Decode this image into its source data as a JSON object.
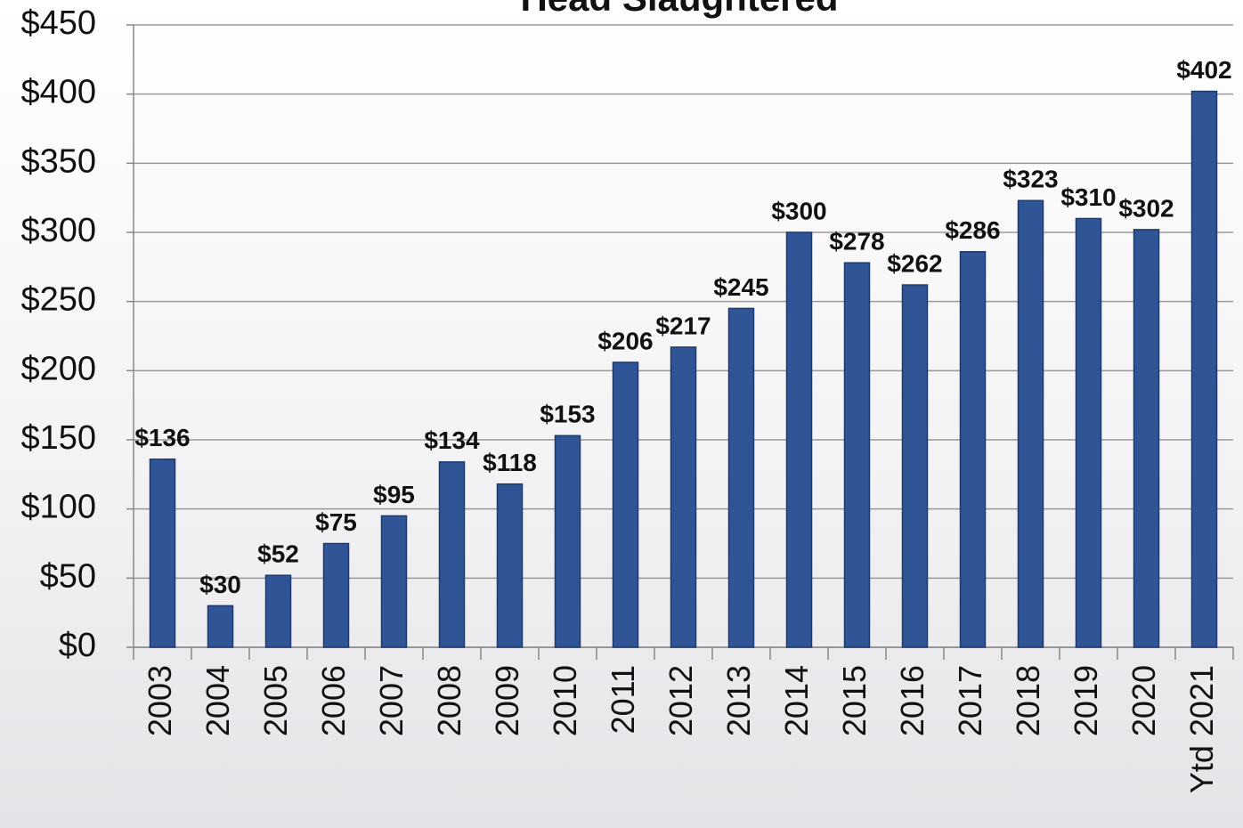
{
  "chart_data": {
    "type": "bar",
    "title": "Head Slaughtered",
    "categories": [
      "2003",
      "2004",
      "2005",
      "2006",
      "2007",
      "2008",
      "2009",
      "2010",
      "2011",
      "2012",
      "2013",
      "2014",
      "2015",
      "2016",
      "2017",
      "2018",
      "2019",
      "2020",
      "Ytd 2021"
    ],
    "values": [
      136,
      30,
      52,
      75,
      95,
      134,
      118,
      153,
      206,
      217,
      245,
      300,
      278,
      262,
      286,
      323,
      310,
      302,
      402
    ],
    "value_labels": [
      "$136",
      "$30",
      "$52",
      "$75",
      "$95",
      "$134",
      "$118",
      "$153",
      "$206",
      "$217",
      "$245",
      "$300",
      "$278",
      "$262",
      "$286",
      "$323",
      "$310",
      "$302",
      "$402"
    ],
    "color": "#2f5597",
    "ylim": [
      0,
      450
    ],
    "yticks": [
      {
        "value": 0,
        "label": "$0"
      },
      {
        "value": 50,
        "label": "$50"
      },
      {
        "value": 100,
        "label": "$100"
      },
      {
        "value": 150,
        "label": "$150"
      },
      {
        "value": 200,
        "label": "$200"
      },
      {
        "value": 250,
        "label": "$250"
      },
      {
        "value": 300,
        "label": "$300"
      },
      {
        "value": 350,
        "label": "$350"
      },
      {
        "value": 400,
        "label": "$400"
      },
      {
        "value": 450,
        "label": "$450"
      }
    ],
    "grid": true
  }
}
